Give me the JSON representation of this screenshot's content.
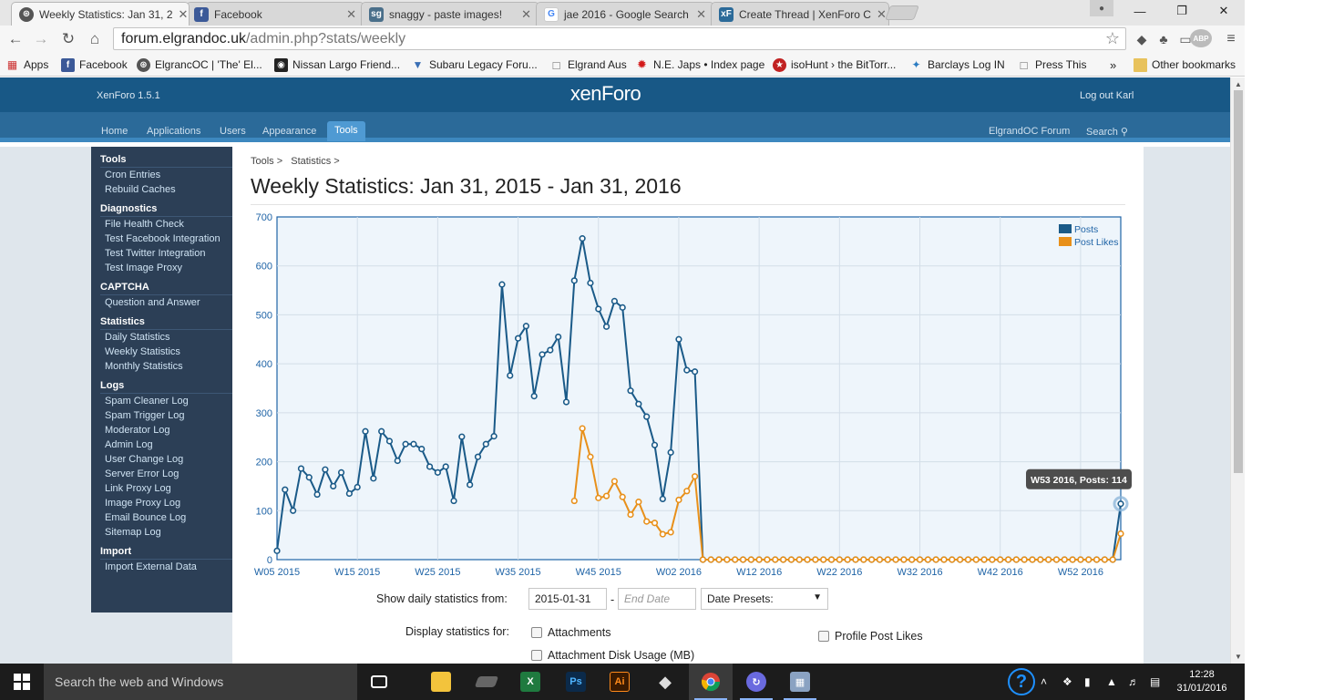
{
  "browser": {
    "tabs": [
      {
        "title": "Weekly Statistics: Jan 31, 2",
        "icon": "xenforo-icon",
        "active": true
      },
      {
        "title": "Facebook",
        "icon": "facebook-icon",
        "active": false
      },
      {
        "title": "snaggy - paste images!",
        "icon": "snaggy-icon",
        "active": false
      },
      {
        "title": "jae 2016 - Google Search",
        "icon": "google-icon",
        "active": false
      },
      {
        "title": "Create Thread | XenForo C",
        "icon": "xf-icon",
        "active": false
      }
    ],
    "url_host": "forum.elgrandoc.uk",
    "url_path": "/admin.php?stats/weekly",
    "bookmarks": [
      "Apps",
      "Facebook",
      "ElgrancOC | 'The' El...",
      "Nissan Largo Friend...",
      "Subaru Legacy Foru...",
      "Elgrand Aus",
      "N.E. Japs • Index page",
      "isoHunt › the BitTorr...",
      "Barclays Log IN",
      "Press This"
    ],
    "bookmarks_more": "»",
    "other_bookmarks": "Other bookmarks",
    "ext_abp": "ABP"
  },
  "xf": {
    "version": "XenForo 1.5.1",
    "logo": "xenForo",
    "logout": "Log out Karl",
    "nav": [
      "Home",
      "Applications",
      "Users",
      "Appearance",
      "Tools"
    ],
    "nav_active": "Tools",
    "nav_right": {
      "forum": "ElgrandOC Forum",
      "search": "Search"
    }
  },
  "sidebar": [
    {
      "heading": "Tools",
      "items": [
        "Cron Entries",
        "Rebuild Caches"
      ]
    },
    {
      "heading": "Diagnostics",
      "items": [
        "File Health Check",
        "Test Facebook Integration",
        "Test Twitter Integration",
        "Test Image Proxy"
      ]
    },
    {
      "heading": "CAPTCHA",
      "items": [
        "Question and Answer"
      ]
    },
    {
      "heading": "Statistics",
      "items": [
        "Daily Statistics",
        "Weekly Statistics",
        "Monthly Statistics"
      ]
    },
    {
      "heading": "Logs",
      "items": [
        "Spam Cleaner Log",
        "Spam Trigger Log",
        "Moderator Log",
        "Admin Log",
        "User Change Log",
        "Server Error Log",
        "Link Proxy Log",
        "Image Proxy Log",
        "Email Bounce Log",
        "Sitemap Log"
      ]
    },
    {
      "heading": "Import",
      "items": [
        "Import External Data"
      ]
    }
  ],
  "main": {
    "breadcrumb": [
      "Tools >",
      "Statistics >"
    ],
    "title": "Weekly Statistics: Jan 31, 2015 - Jan 31, 2016",
    "controls": {
      "from_label": "Show daily statistics from:",
      "start_date": "2015-01-31",
      "separator": "-",
      "end_placeholder": "End Date",
      "presets": "Date Presets:",
      "display_label": "Display statistics for:",
      "checkboxes": [
        "Attachments",
        "Attachment Disk Usage (MB)",
        "Profile Post Likes"
      ]
    }
  },
  "chart_data": {
    "type": "line",
    "ylim": [
      0,
      700
    ],
    "yticks": [
      0,
      100,
      200,
      300,
      400,
      500,
      600,
      700
    ],
    "xtick_labels": [
      "W05 2015",
      "W15 2015",
      "W25 2015",
      "W35 2015",
      "W45 2015",
      "W02 2016",
      "W12 2016",
      "W22 2016",
      "W32 2016",
      "W42 2016",
      "W52 2016"
    ],
    "legend_position": "top-right",
    "grid": true,
    "tooltip": "W53 2016, Posts: 114",
    "series": [
      {
        "name": "Posts",
        "color": "#1a5a88",
        "values": [
          18,
          143,
          100,
          186,
          168,
          133,
          184,
          150,
          178,
          135,
          148,
          262,
          166,
          262,
          242,
          202,
          236,
          236,
          226,
          190,
          178,
          190,
          120,
          251,
          153,
          210,
          236,
          252,
          562,
          376,
          452,
          477,
          334,
          419,
          428,
          455,
          322,
          570,
          656,
          565,
          512,
          476,
          528,
          515,
          345,
          318,
          292,
          234,
          124,
          219,
          450,
          387,
          384,
          0,
          0,
          0,
          0,
          0,
          0,
          0,
          0,
          0,
          0,
          0,
          0,
          0,
          0,
          0,
          0,
          0,
          0,
          0,
          0,
          0,
          0,
          0,
          0,
          0,
          0,
          0,
          0,
          0,
          0,
          0,
          0,
          0,
          0,
          0,
          0,
          0,
          0,
          0,
          0,
          0,
          0,
          0,
          0,
          0,
          0,
          0,
          0,
          0,
          0,
          0,
          0,
          114
        ]
      },
      {
        "name": "Post Likes",
        "color": "#e8901a",
        "values": [
          null,
          null,
          null,
          null,
          null,
          null,
          null,
          null,
          null,
          null,
          null,
          null,
          null,
          null,
          null,
          null,
          null,
          null,
          null,
          null,
          null,
          null,
          null,
          null,
          null,
          null,
          null,
          null,
          null,
          null,
          null,
          null,
          null,
          null,
          null,
          null,
          null,
          120,
          268,
          210,
          126,
          130,
          160,
          128,
          92,
          118,
          78,
          75,
          52,
          56,
          122,
          140,
          170,
          0,
          0,
          0,
          0,
          0,
          0,
          0,
          0,
          0,
          0,
          0,
          0,
          0,
          0,
          0,
          0,
          0,
          0,
          0,
          0,
          0,
          0,
          0,
          0,
          0,
          0,
          0,
          0,
          0,
          0,
          0,
          0,
          0,
          0,
          0,
          0,
          0,
          0,
          0,
          0,
          0,
          0,
          0,
          0,
          0,
          0,
          0,
          0,
          0,
          0,
          0,
          0,
          53
        ]
      }
    ]
  },
  "taskbar": {
    "search_placeholder": "Search the web and Windows",
    "time": "12:28",
    "date": "31/01/2016"
  },
  "colors": {
    "header": "#185886",
    "nav": "#2b6a99",
    "sidebar": "#2c3f56",
    "posts": "#1a5a88",
    "likes": "#e8901a"
  }
}
